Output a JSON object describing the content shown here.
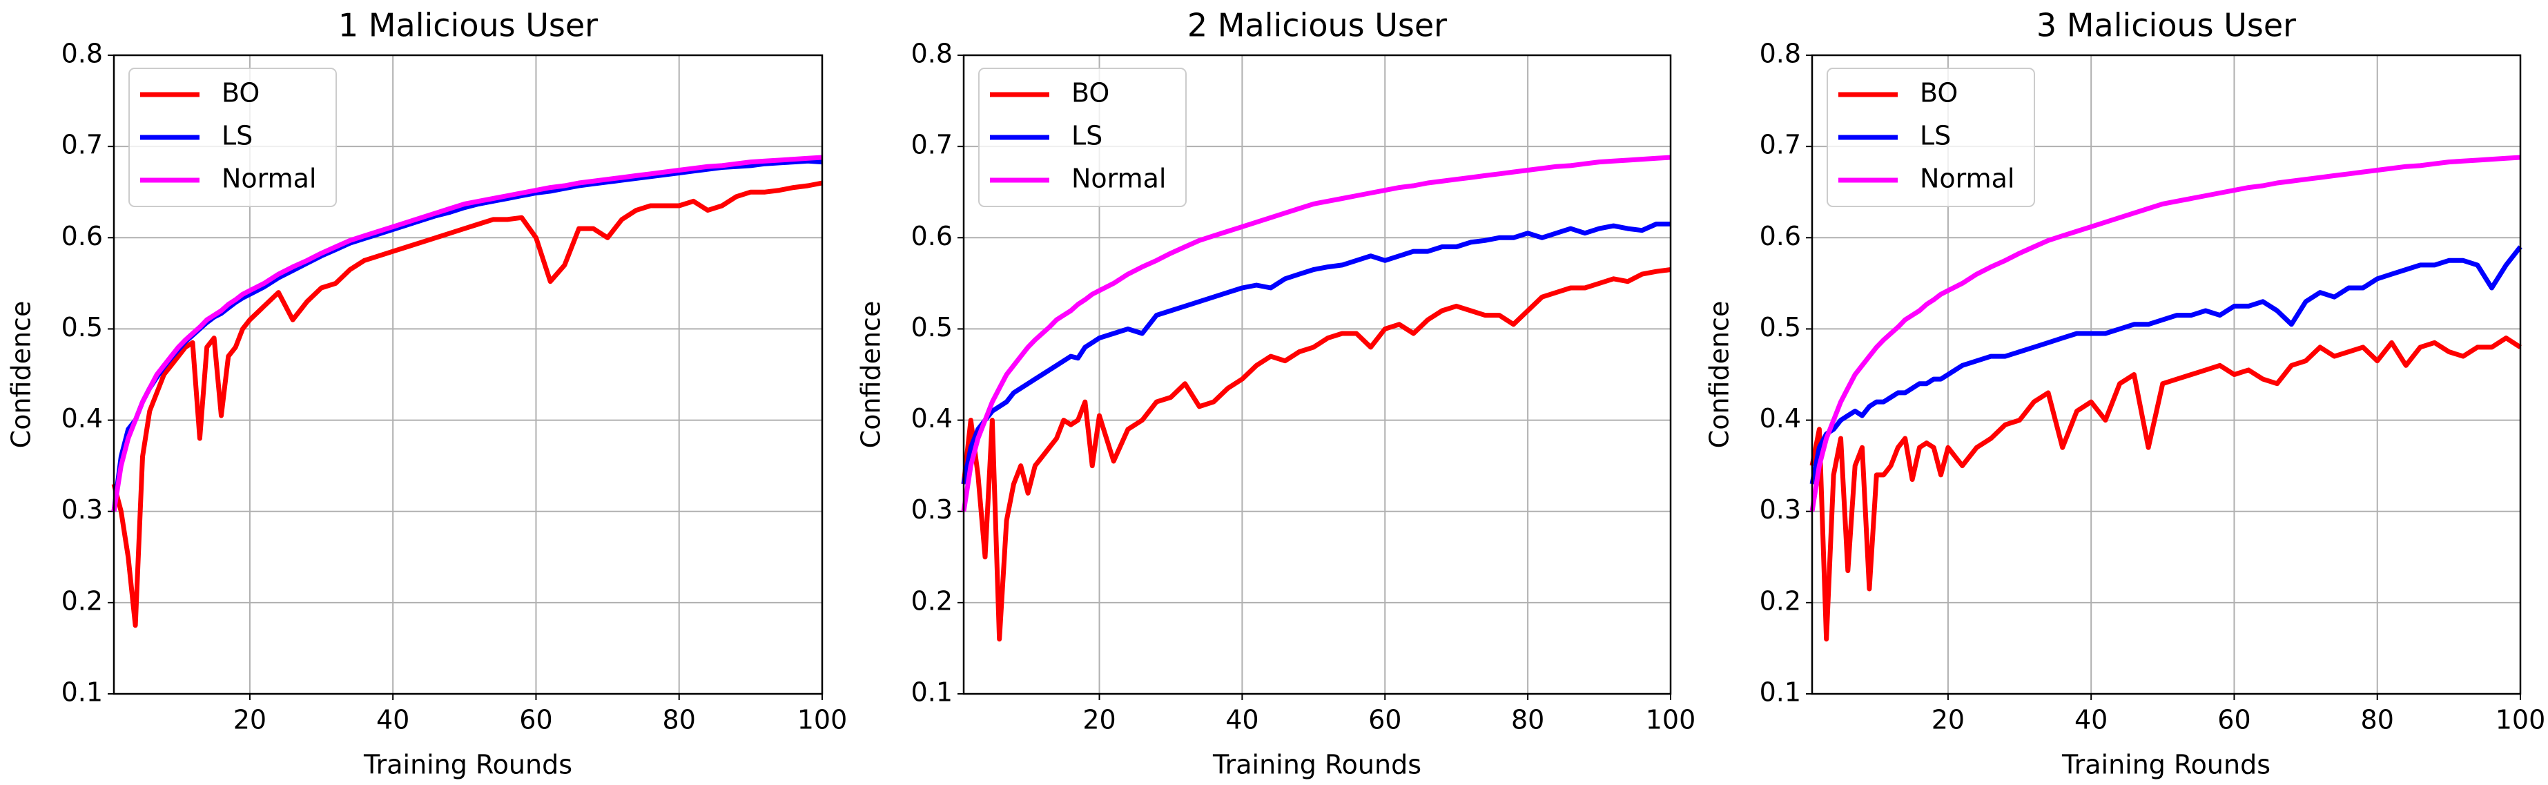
{
  "chart_data": [
    {
      "type": "line",
      "title": "1 Malicious User",
      "xlabel": "Training Rounds",
      "ylabel": "Confidence",
      "x": [
        1,
        2,
        3,
        4,
        5,
        6,
        7,
        8,
        9,
        10,
        11,
        12,
        13,
        14,
        15,
        16,
        17,
        18,
        19,
        20,
        22,
        24,
        26,
        28,
        30,
        32,
        34,
        36,
        38,
        40,
        42,
        44,
        46,
        48,
        50,
        52,
        54,
        56,
        58,
        60,
        62,
        64,
        66,
        68,
        70,
        72,
        74,
        76,
        78,
        80,
        82,
        84,
        86,
        88,
        90,
        92,
        94,
        96,
        98,
        100
      ],
      "series": [
        {
          "name": "BO",
          "color": "#ff0000",
          "values": [
            0.33,
            0.3,
            0.25,
            0.175,
            0.36,
            0.41,
            0.43,
            0.45,
            0.46,
            0.47,
            0.48,
            0.485,
            0.38,
            0.48,
            0.49,
            0.405,
            0.47,
            0.48,
            0.5,
            0.51,
            0.525,
            0.54,
            0.51,
            0.53,
            0.545,
            0.55,
            0.565,
            0.575,
            0.58,
            0.585,
            0.59,
            0.595,
            0.6,
            0.605,
            0.61,
            0.615,
            0.62,
            0.62,
            0.622,
            0.6,
            0.552,
            0.57,
            0.61,
            0.61,
            0.6,
            0.62,
            0.63,
            0.635,
            0.635,
            0.635,
            0.64,
            0.63,
            0.635,
            0.645,
            0.65,
            0.65,
            0.652,
            0.655,
            0.657,
            0.66
          ]
        },
        {
          "name": "LS",
          "color": "#0000ff",
          "values": [
            0.3,
            0.36,
            0.39,
            0.4,
            0.42,
            0.435,
            0.447,
            0.458,
            0.468,
            0.477,
            0.486,
            0.493,
            0.5,
            0.507,
            0.513,
            0.517,
            0.523,
            0.529,
            0.534,
            0.538,
            0.546,
            0.556,
            0.564,
            0.572,
            0.58,
            0.587,
            0.594,
            0.599,
            0.604,
            0.609,
            0.614,
            0.619,
            0.624,
            0.628,
            0.633,
            0.637,
            0.64,
            0.643,
            0.646,
            0.649,
            0.651,
            0.654,
            0.657,
            0.659,
            0.661,
            0.663,
            0.665,
            0.667,
            0.669,
            0.671,
            0.673,
            0.675,
            0.677,
            0.678,
            0.679,
            0.681,
            0.682,
            0.683,
            0.684,
            0.683
          ]
        },
        {
          "name": "Normal",
          "color": "#ff00ff",
          "values": [
            0.3,
            0.35,
            0.38,
            0.4,
            0.42,
            0.435,
            0.45,
            0.46,
            0.47,
            0.48,
            0.488,
            0.495,
            0.502,
            0.51,
            0.515,
            0.52,
            0.527,
            0.532,
            0.538,
            0.542,
            0.55,
            0.56,
            0.568,
            0.575,
            0.583,
            0.59,
            0.597,
            0.602,
            0.607,
            0.612,
            0.617,
            0.622,
            0.627,
            0.632,
            0.637,
            0.64,
            0.643,
            0.646,
            0.649,
            0.652,
            0.655,
            0.657,
            0.66,
            0.662,
            0.664,
            0.666,
            0.668,
            0.67,
            0.672,
            0.674,
            0.676,
            0.678,
            0.679,
            0.681,
            0.683,
            0.684,
            0.685,
            0.686,
            0.687,
            0.688
          ]
        }
      ],
      "xlim": [
        1,
        100
      ],
      "ylim": [
        0.1,
        0.8
      ],
      "xticks": [
        20,
        40,
        60,
        80,
        100
      ],
      "yticks": [
        0.1,
        0.2,
        0.3,
        0.4,
        0.5,
        0.6,
        0.7,
        0.8
      ],
      "grid": true,
      "legend": "upper-left"
    },
    {
      "type": "line",
      "title": "2 Malicious User",
      "xlabel": "Training Rounds",
      "ylabel": "Confidence",
      "x": [
        1,
        2,
        3,
        4,
        5,
        6,
        7,
        8,
        9,
        10,
        11,
        12,
        13,
        14,
        15,
        16,
        17,
        18,
        19,
        20,
        22,
        24,
        26,
        28,
        30,
        32,
        34,
        36,
        38,
        40,
        42,
        44,
        46,
        48,
        50,
        52,
        54,
        56,
        58,
        60,
        62,
        64,
        66,
        68,
        70,
        72,
        74,
        76,
        78,
        80,
        82,
        84,
        86,
        88,
        90,
        92,
        94,
        96,
        98,
        100
      ],
      "series": [
        {
          "name": "BO",
          "color": "#ff0000",
          "values": [
            0.33,
            0.4,
            0.34,
            0.25,
            0.4,
            0.16,
            0.29,
            0.33,
            0.35,
            0.32,
            0.35,
            0.36,
            0.37,
            0.38,
            0.4,
            0.395,
            0.4,
            0.42,
            0.35,
            0.405,
            0.355,
            0.39,
            0.4,
            0.42,
            0.425,
            0.44,
            0.415,
            0.42,
            0.435,
            0.445,
            0.46,
            0.47,
            0.465,
            0.475,
            0.48,
            0.49,
            0.495,
            0.495,
            0.48,
            0.5,
            0.505,
            0.495,
            0.51,
            0.52,
            0.525,
            0.52,
            0.515,
            0.515,
            0.505,
            0.52,
            0.535,
            0.54,
            0.545,
            0.545,
            0.55,
            0.555,
            0.552,
            0.56,
            0.563,
            0.565
          ]
        },
        {
          "name": "LS",
          "color": "#0000ff",
          "values": [
            0.33,
            0.37,
            0.39,
            0.4,
            0.41,
            0.415,
            0.42,
            0.43,
            0.435,
            0.44,
            0.445,
            0.45,
            0.455,
            0.46,
            0.465,
            0.47,
            0.468,
            0.48,
            0.485,
            0.49,
            0.495,
            0.5,
            0.495,
            0.515,
            0.52,
            0.525,
            0.53,
            0.535,
            0.54,
            0.545,
            0.548,
            0.545,
            0.555,
            0.56,
            0.565,
            0.568,
            0.57,
            0.575,
            0.58,
            0.575,
            0.58,
            0.585,
            0.585,
            0.59,
            0.59,
            0.595,
            0.597,
            0.6,
            0.6,
            0.605,
            0.6,
            0.605,
            0.61,
            0.605,
            0.61,
            0.613,
            0.61,
            0.608,
            0.615,
            0.615
          ]
        },
        {
          "name": "Normal",
          "color": "#ff00ff",
          "values": [
            0.3,
            0.35,
            0.38,
            0.4,
            0.42,
            0.435,
            0.45,
            0.46,
            0.47,
            0.48,
            0.488,
            0.495,
            0.502,
            0.51,
            0.515,
            0.52,
            0.527,
            0.532,
            0.538,
            0.542,
            0.55,
            0.56,
            0.568,
            0.575,
            0.583,
            0.59,
            0.597,
            0.602,
            0.607,
            0.612,
            0.617,
            0.622,
            0.627,
            0.632,
            0.637,
            0.64,
            0.643,
            0.646,
            0.649,
            0.652,
            0.655,
            0.657,
            0.66,
            0.662,
            0.664,
            0.666,
            0.668,
            0.67,
            0.672,
            0.674,
            0.676,
            0.678,
            0.679,
            0.681,
            0.683,
            0.684,
            0.685,
            0.686,
            0.687,
            0.688
          ]
        }
      ],
      "xlim": [
        1,
        100
      ],
      "ylim": [
        0.1,
        0.8
      ],
      "xticks": [
        20,
        40,
        60,
        80,
        100
      ],
      "yticks": [
        0.1,
        0.2,
        0.3,
        0.4,
        0.5,
        0.6,
        0.7,
        0.8
      ],
      "grid": true,
      "legend": "upper-left"
    },
    {
      "type": "line",
      "title": "3 Malicious User",
      "xlabel": "Training Rounds",
      "ylabel": "Confidence",
      "x": [
        1,
        2,
        3,
        4,
        5,
        6,
        7,
        8,
        9,
        10,
        11,
        12,
        13,
        14,
        15,
        16,
        17,
        18,
        19,
        20,
        22,
        24,
        26,
        28,
        30,
        32,
        34,
        36,
        38,
        40,
        42,
        44,
        46,
        48,
        50,
        52,
        54,
        56,
        58,
        60,
        62,
        64,
        66,
        68,
        70,
        72,
        74,
        76,
        78,
        80,
        82,
        84,
        86,
        88,
        90,
        92,
        94,
        96,
        98,
        100
      ],
      "series": [
        {
          "name": "BO",
          "color": "#ff0000",
          "values": [
            0.35,
            0.39,
            0.16,
            0.34,
            0.38,
            0.235,
            0.35,
            0.37,
            0.215,
            0.34,
            0.34,
            0.35,
            0.37,
            0.38,
            0.335,
            0.37,
            0.375,
            0.37,
            0.34,
            0.37,
            0.35,
            0.37,
            0.38,
            0.395,
            0.4,
            0.42,
            0.43,
            0.37,
            0.41,
            0.42,
            0.4,
            0.44,
            0.45,
            0.37,
            0.44,
            0.445,
            0.45,
            0.455,
            0.46,
            0.45,
            0.455,
            0.445,
            0.44,
            0.46,
            0.465,
            0.48,
            0.47,
            0.475,
            0.48,
            0.465,
            0.485,
            0.46,
            0.48,
            0.485,
            0.475,
            0.47,
            0.48,
            0.48,
            0.49,
            0.48
          ]
        },
        {
          "name": "LS",
          "color": "#0000ff",
          "values": [
            0.33,
            0.37,
            0.385,
            0.39,
            0.4,
            0.405,
            0.41,
            0.405,
            0.415,
            0.42,
            0.42,
            0.425,
            0.43,
            0.43,
            0.435,
            0.44,
            0.44,
            0.445,
            0.445,
            0.45,
            0.46,
            0.465,
            0.47,
            0.47,
            0.475,
            0.48,
            0.485,
            0.49,
            0.495,
            0.495,
            0.495,
            0.5,
            0.505,
            0.505,
            0.51,
            0.515,
            0.515,
            0.52,
            0.515,
            0.525,
            0.525,
            0.53,
            0.52,
            0.505,
            0.53,
            0.54,
            0.535,
            0.545,
            0.545,
            0.555,
            0.56,
            0.565,
            0.57,
            0.57,
            0.575,
            0.575,
            0.57,
            0.545,
            0.57,
            0.59
          ]
        },
        {
          "name": "Normal",
          "color": "#ff00ff",
          "values": [
            0.3,
            0.35,
            0.38,
            0.4,
            0.42,
            0.435,
            0.45,
            0.46,
            0.47,
            0.48,
            0.488,
            0.495,
            0.502,
            0.51,
            0.515,
            0.52,
            0.527,
            0.532,
            0.538,
            0.542,
            0.55,
            0.56,
            0.568,
            0.575,
            0.583,
            0.59,
            0.597,
            0.602,
            0.607,
            0.612,
            0.617,
            0.622,
            0.627,
            0.632,
            0.637,
            0.64,
            0.643,
            0.646,
            0.649,
            0.652,
            0.655,
            0.657,
            0.66,
            0.662,
            0.664,
            0.666,
            0.668,
            0.67,
            0.672,
            0.674,
            0.676,
            0.678,
            0.679,
            0.681,
            0.683,
            0.684,
            0.685,
            0.686,
            0.687,
            0.688
          ]
        }
      ],
      "xlim": [
        1,
        100
      ],
      "ylim": [
        0.1,
        0.8
      ],
      "xticks": [
        20,
        40,
        60,
        80,
        100
      ],
      "yticks": [
        0.1,
        0.2,
        0.3,
        0.4,
        0.5,
        0.6,
        0.7,
        0.8
      ],
      "grid": true,
      "legend": "upper-left"
    }
  ]
}
